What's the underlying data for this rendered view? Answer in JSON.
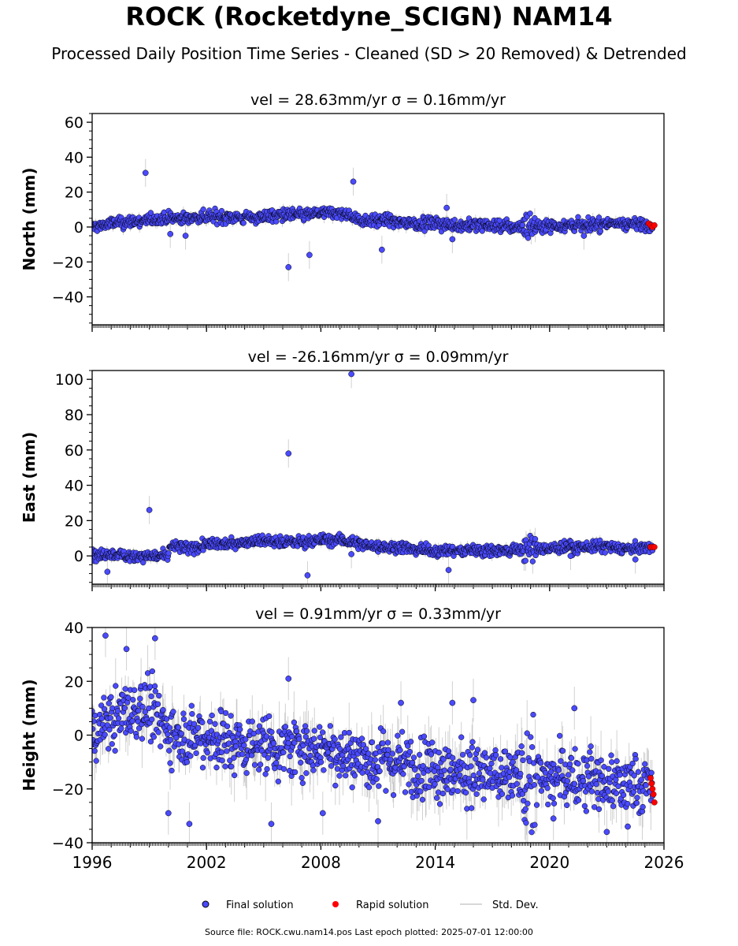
{
  "header": {
    "title": "ROCK (Rocketdyne_SCIGN) NAM14",
    "subtitle": "Processed Daily Position Time Series - Cleaned (SD > 20 Removed) & Detrended"
  },
  "footer": {
    "source": "Source file: ROCK.cwu.nam14.pos  Last epoch plotted: 2025-07-01 12:00:00"
  },
  "colors": {
    "final": "#4a4aff",
    "rapid": "#ff0000",
    "stddev": "#aaaaaa",
    "marker_edge": "#000000"
  },
  "chart_data": [
    {
      "type": "scatter",
      "title": "vel = 28.63mm/yr   σ = 0.16mm/yr",
      "ylabel": "North (mm)",
      "xlim": [
        1996,
        2026
      ],
      "ylim": [
        -56,
        65
      ],
      "yticks": [
        -40,
        -20,
        0,
        20,
        40,
        60
      ],
      "xticks": [
        1996,
        2002,
        2008,
        2014,
        2020,
        2026
      ],
      "trend": [
        [
          1996,
          0
        ],
        [
          1997,
          2
        ],
        [
          1998,
          3
        ],
        [
          1999,
          4
        ],
        [
          2000,
          5
        ],
        [
          2001,
          5
        ],
        [
          2002,
          6
        ],
        [
          2003,
          6
        ],
        [
          2004,
          5
        ],
        [
          2005,
          6
        ],
        [
          2006,
          7
        ],
        [
          2007,
          7
        ],
        [
          2008,
          8
        ],
        [
          2009,
          8
        ],
        [
          2009.7,
          6
        ],
        [
          2010,
          4
        ],
        [
          2011,
          4
        ],
        [
          2012,
          3
        ],
        [
          2013,
          2
        ],
        [
          2014,
          2
        ],
        [
          2015,
          1
        ],
        [
          2016,
          1
        ],
        [
          2017,
          1
        ],
        [
          2018,
          0
        ],
        [
          2019,
          1
        ],
        [
          2020,
          1
        ],
        [
          2021,
          1
        ],
        [
          2022,
          1
        ],
        [
          2023,
          2
        ],
        [
          2024,
          2
        ],
        [
          2025.5,
          1
        ]
      ],
      "spread": 2.5,
      "outliers": [
        [
          1998.8,
          31
        ],
        [
          2000.1,
          -4
        ],
        [
          2000.9,
          -5
        ],
        [
          2006.3,
          -23
        ],
        [
          2007.4,
          -16
        ],
        [
          2009.7,
          26
        ],
        [
          2011.2,
          -13
        ],
        [
          2014.6,
          11
        ],
        [
          2014.9,
          -7
        ],
        [
          2021.8,
          -5
        ]
      ],
      "rapid": [
        [
          2025.2,
          2
        ],
        [
          2025.3,
          1
        ],
        [
          2025.4,
          0
        ],
        [
          2025.5,
          1
        ]
      ],
      "series": [
        {
          "name": "Final solution"
        },
        {
          "name": "Rapid solution"
        },
        {
          "name": "Std. Dev."
        }
      ]
    },
    {
      "type": "scatter",
      "title": "vel = -26.16mm/yr   σ = 0.09mm/yr",
      "ylabel": "East (mm)",
      "xlim": [
        1996,
        2026
      ],
      "ylim": [
        -16,
        105
      ],
      "yticks": [
        0,
        20,
        40,
        60,
        80,
        100
      ],
      "xticks": [
        1996,
        2002,
        2008,
        2014,
        2020,
        2026
      ],
      "trend": [
        [
          1996,
          0
        ],
        [
          1997,
          1
        ],
        [
          1998,
          0
        ],
        [
          1999,
          0
        ],
        [
          2000,
          0
        ],
        [
          2000.1,
          6
        ],
        [
          2001,
          4
        ],
        [
          2002,
          6
        ],
        [
          2003,
          7
        ],
        [
          2004,
          8
        ],
        [
          2005,
          9
        ],
        [
          2006,
          8
        ],
        [
          2007,
          8
        ],
        [
          2008,
          9
        ],
        [
          2009,
          9
        ],
        [
          2010,
          7
        ],
        [
          2011,
          5
        ],
        [
          2012,
          5
        ],
        [
          2013,
          4
        ],
        [
          2014,
          3
        ],
        [
          2015,
          3
        ],
        [
          2016,
          3
        ],
        [
          2017,
          3
        ],
        [
          2018,
          3
        ],
        [
          2019,
          4
        ],
        [
          2020,
          4
        ],
        [
          2021,
          5
        ],
        [
          2022,
          5
        ],
        [
          2023,
          5
        ],
        [
          2024,
          4
        ],
        [
          2025.5,
          5
        ]
      ],
      "spread": 2.2,
      "outliers": [
        [
          1996.8,
          -9
        ],
        [
          1999.0,
          26
        ],
        [
          2006.3,
          58
        ],
        [
          2007.3,
          -11
        ],
        [
          2009.6,
          103
        ],
        [
          2009.6,
          1
        ],
        [
          2014.7,
          -8
        ],
        [
          2021.1,
          0
        ],
        [
          2024.5,
          -2
        ]
      ],
      "rapid": [
        [
          2025.3,
          5
        ],
        [
          2025.4,
          5
        ],
        [
          2025.5,
          5
        ]
      ],
      "series": [
        {
          "name": "Final solution"
        },
        {
          "name": "Rapid solution"
        },
        {
          "name": "Std. Dev."
        }
      ]
    },
    {
      "type": "scatter",
      "title": "vel = 0.91mm/yr   σ = 0.33mm/yr",
      "ylabel": "Height (mm)",
      "xlim": [
        1996,
        2026
      ],
      "ylim": [
        -40,
        40
      ],
      "yticks": [
        -40,
        -20,
        0,
        20,
        40
      ],
      "xticks": [
        1996,
        2002,
        2008,
        2014,
        2020,
        2026
      ],
      "trend": [
        [
          1996,
          0
        ],
        [
          1997,
          6
        ],
        [
          1998,
          8
        ],
        [
          1999,
          10
        ],
        [
          2000,
          2
        ],
        [
          2001,
          0
        ],
        [
          2002,
          0
        ],
        [
          2003,
          -2
        ],
        [
          2004,
          -4
        ],
        [
          2005,
          -3
        ],
        [
          2006,
          -6
        ],
        [
          2007,
          -4
        ],
        [
          2008,
          -4
        ],
        [
          2009,
          -6
        ],
        [
          2010,
          -8
        ],
        [
          2011,
          -10
        ],
        [
          2012,
          -10
        ],
        [
          2013,
          -12
        ],
        [
          2014,
          -12
        ],
        [
          2015,
          -14
        ],
        [
          2016,
          -14
        ],
        [
          2017,
          -16
        ],
        [
          2018,
          -15
        ],
        [
          2019,
          -15
        ],
        [
          2020,
          -16
        ],
        [
          2021,
          -16
        ],
        [
          2022,
          -17
        ],
        [
          2023,
          -18
        ],
        [
          2024,
          -18
        ],
        [
          2025.5,
          -19
        ]
      ],
      "spread": 8,
      "outliers": [
        [
          1996.7,
          37
        ],
        [
          1997.8,
          32
        ],
        [
          1999.3,
          36
        ],
        [
          2000.0,
          -29
        ],
        [
          2001.1,
          -33
        ],
        [
          2005.4,
          -33
        ],
        [
          2006.3,
          21
        ],
        [
          2008.1,
          -29
        ],
        [
          2011.0,
          -32
        ],
        [
          2012.2,
          12
        ],
        [
          2014.9,
          12
        ],
        [
          2016.0,
          13
        ],
        [
          2020.2,
          -31
        ],
        [
          2021.3,
          10
        ],
        [
          2023.0,
          -36
        ],
        [
          2024.1,
          -34
        ]
      ],
      "rapid": [
        [
          2025.3,
          -16
        ],
        [
          2025.35,
          -18
        ],
        [
          2025.4,
          -20
        ],
        [
          2025.45,
          -22
        ],
        [
          2025.5,
          -25
        ]
      ],
      "series": [
        {
          "name": "Final solution"
        },
        {
          "name": "Rapid solution"
        },
        {
          "name": "Std. Dev."
        }
      ]
    }
  ],
  "legend": {
    "final_label": "Final solution",
    "rapid_label": "Rapid solution",
    "stddev_label": "Std. Dev."
  }
}
